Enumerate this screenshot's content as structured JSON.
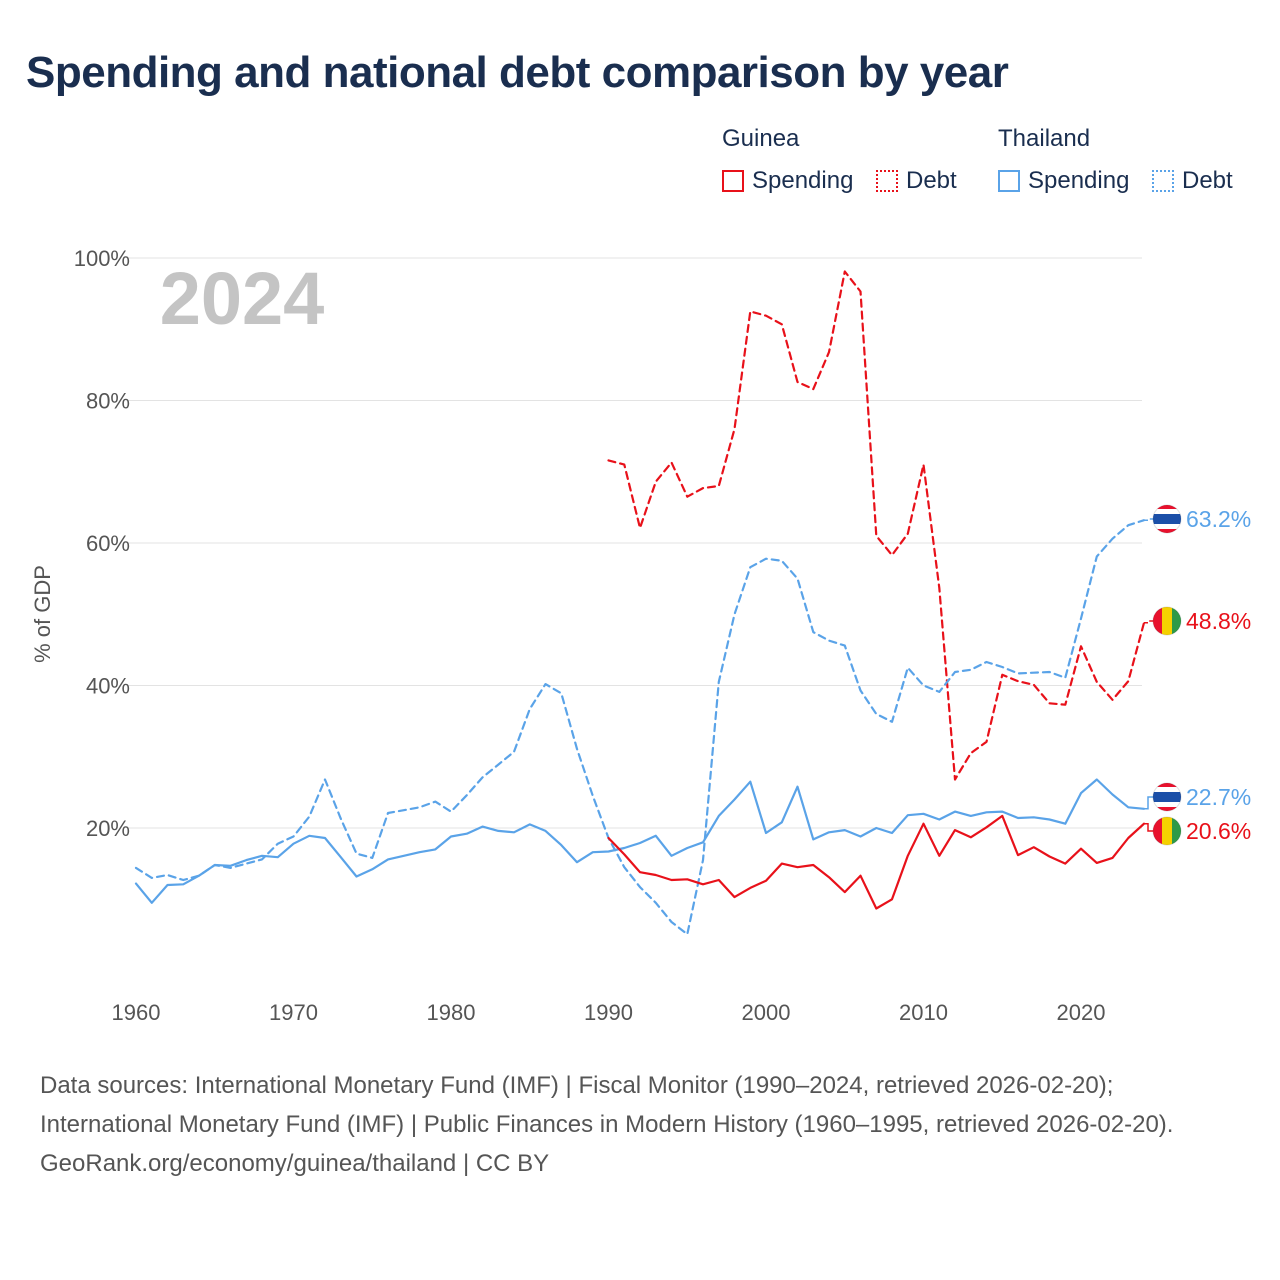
{
  "title": "Spending and national debt comparison by year",
  "legend": {
    "groups": [
      {
        "name": "Guinea",
        "color": "#e8111a",
        "items": [
          {
            "label": "Spending",
            "style": "solid"
          },
          {
            "label": "Debt",
            "style": "dotted"
          }
        ]
      },
      {
        "name": "Thailand",
        "color": "#5aa3e8",
        "items": [
          {
            "label": "Spending",
            "style": "solid"
          },
          {
            "label": "Debt",
            "style": "dotted"
          }
        ]
      }
    ]
  },
  "chart_data": {
    "type": "line",
    "title": "Spending and national debt comparison by year",
    "watermark_year": "2024",
    "ylabel": "% of GDP",
    "xlabel": "",
    "xlim": [
      1959,
      2025
    ],
    "ylim": [
      0,
      100
    ],
    "x_ticks": [
      1960,
      1970,
      1980,
      1990,
      2000,
      2010,
      2020
    ],
    "y_ticks": [
      {
        "value": 20,
        "label": "20%"
      },
      {
        "value": 40,
        "label": "40%"
      },
      {
        "value": 60,
        "label": "60%"
      },
      {
        "value": 80,
        "label": "80%"
      },
      {
        "value": 100,
        "label": "100%"
      }
    ],
    "series": [
      {
        "name": "Guinea Debt",
        "country": "Guinea",
        "measure": "Debt",
        "color": "#e8111a",
        "dash": true,
        "end_label": "48.8%",
        "points": [
          [
            1990,
            71.6
          ],
          [
            1991,
            71
          ],
          [
            1992,
            62.1
          ],
          [
            1993,
            68.6
          ],
          [
            1994,
            71.3
          ],
          [
            1995,
            66.5
          ],
          [
            1996,
            67.7
          ],
          [
            1997,
            68
          ],
          [
            1998,
            76
          ],
          [
            1999,
            92.5
          ],
          [
            2000,
            91.9
          ],
          [
            2001,
            90.7
          ],
          [
            2002,
            82.6
          ],
          [
            2003,
            81.6
          ],
          [
            2004,
            86.8
          ],
          [
            2005,
            98.1
          ],
          [
            2006,
            95.3
          ],
          [
            2007,
            61
          ],
          [
            2008,
            58.3
          ],
          [
            2009,
            61.3
          ],
          [
            2010,
            71
          ],
          [
            2011,
            53.7
          ],
          [
            2012,
            26.8
          ],
          [
            2013,
            30.5
          ],
          [
            2014,
            32.1
          ],
          [
            2015,
            41.5
          ],
          [
            2016,
            40.6
          ],
          [
            2017,
            40.1
          ],
          [
            2018,
            37.5
          ],
          [
            2019,
            37.3
          ],
          [
            2020,
            45.5
          ],
          [
            2021,
            40.5
          ],
          [
            2022,
            38
          ],
          [
            2023,
            40.6
          ],
          [
            2024,
            48.8
          ]
        ]
      },
      {
        "name": "Thailand Debt",
        "country": "Thailand",
        "measure": "Debt",
        "color": "#5aa3e8",
        "dash": true,
        "end_label": "63.2%",
        "points": [
          [
            1960,
            14.4
          ],
          [
            1961,
            13
          ],
          [
            1962,
            13.4
          ],
          [
            1963,
            12.7
          ],
          [
            1964,
            13.3
          ],
          [
            1965,
            14.8
          ],
          [
            1966,
            14.4
          ],
          [
            1967,
            15
          ],
          [
            1968,
            15.6
          ],
          [
            1969,
            17.8
          ],
          [
            1970,
            18.8
          ],
          [
            1971,
            21.6
          ],
          [
            1972,
            26.8
          ],
          [
            1973,
            21.3
          ],
          [
            1974,
            16.4
          ],
          [
            1975,
            15.8
          ],
          [
            1976,
            22.1
          ],
          [
            1977,
            22.5
          ],
          [
            1978,
            22.9
          ],
          [
            1979,
            23.7
          ],
          [
            1980,
            22.3
          ],
          [
            1981,
            24.6
          ],
          [
            1982,
            27.1
          ],
          [
            1983,
            28.9
          ],
          [
            1984,
            30.7
          ],
          [
            1985,
            36.7
          ],
          [
            1986,
            40.2
          ],
          [
            1987,
            38.9
          ],
          [
            1988,
            31.1
          ],
          [
            1989,
            24.5
          ],
          [
            1990,
            18.6
          ],
          [
            1991,
            14.5
          ],
          [
            1992,
            11.7
          ],
          [
            1993,
            9.5
          ],
          [
            1994,
            6.8
          ],
          [
            1995,
            5.1
          ],
          [
            1996,
            15.5
          ],
          [
            1997,
            40.5
          ],
          [
            1998,
            50
          ],
          [
            1999,
            56.6
          ],
          [
            2000,
            57.8
          ],
          [
            2001,
            57.5
          ],
          [
            2002,
            55
          ],
          [
            2003,
            47.5
          ],
          [
            2004,
            46.3
          ],
          [
            2005,
            45.6
          ],
          [
            2006,
            39.3
          ],
          [
            2007,
            36
          ],
          [
            2008,
            34.9
          ],
          [
            2009,
            42.5
          ],
          [
            2010,
            40
          ],
          [
            2011,
            39.1
          ],
          [
            2012,
            41.9
          ],
          [
            2013,
            42.2
          ],
          [
            2014,
            43.3
          ],
          [
            2015,
            42.6
          ],
          [
            2016,
            41.7
          ],
          [
            2017,
            41.8
          ],
          [
            2018,
            41.9
          ],
          [
            2019,
            41.1
          ],
          [
            2020,
            49.4
          ],
          [
            2021,
            58.1
          ],
          [
            2022,
            60.6
          ],
          [
            2023,
            62.5
          ],
          [
            2024,
            63.2
          ]
        ]
      },
      {
        "name": "Thailand Spending",
        "country": "Thailand",
        "measure": "Spending",
        "color": "#5aa3e8",
        "dash": false,
        "end_label": "22.7%",
        "points": [
          [
            1960,
            12.2
          ],
          [
            1961,
            9.5
          ],
          [
            1962,
            12
          ],
          [
            1963,
            12.1
          ],
          [
            1964,
            13.3
          ],
          [
            1965,
            14.8
          ],
          [
            1966,
            14.7
          ],
          [
            1967,
            15.5
          ],
          [
            1968,
            16.1
          ],
          [
            1969,
            15.9
          ],
          [
            1970,
            17.8
          ],
          [
            1971,
            18.9
          ],
          [
            1972,
            18.6
          ],
          [
            1973,
            15.9
          ],
          [
            1974,
            13.2
          ],
          [
            1975,
            14.2
          ],
          [
            1976,
            15.6
          ],
          [
            1977,
            16.1
          ],
          [
            1978,
            16.6
          ],
          [
            1979,
            17
          ],
          [
            1980,
            18.8
          ],
          [
            1981,
            19.2
          ],
          [
            1982,
            20.2
          ],
          [
            1983,
            19.6
          ],
          [
            1984,
            19.4
          ],
          [
            1985,
            20.5
          ],
          [
            1986,
            19.6
          ],
          [
            1987,
            17.6
          ],
          [
            1988,
            15.2
          ],
          [
            1989,
            16.6
          ],
          [
            1990,
            16.7
          ],
          [
            1991,
            17.2
          ],
          [
            1992,
            17.9
          ],
          [
            1993,
            18.9
          ],
          [
            1994,
            16.1
          ],
          [
            1995,
            17.2
          ],
          [
            1996,
            18
          ],
          [
            1997,
            21.7
          ],
          [
            1998,
            24
          ],
          [
            1999,
            26.5
          ],
          [
            2000,
            19.3
          ],
          [
            2001,
            20.8
          ],
          [
            2002,
            25.8
          ],
          [
            2003,
            18.4
          ],
          [
            2004,
            19.4
          ],
          [
            2005,
            19.7
          ],
          [
            2006,
            18.8
          ],
          [
            2007,
            20
          ],
          [
            2008,
            19.3
          ],
          [
            2009,
            21.8
          ],
          [
            2010,
            22
          ],
          [
            2011,
            21.2
          ],
          [
            2012,
            22.3
          ],
          [
            2013,
            21.7
          ],
          [
            2014,
            22.2
          ],
          [
            2015,
            22.3
          ],
          [
            2016,
            21.4
          ],
          [
            2017,
            21.5
          ],
          [
            2018,
            21.2
          ],
          [
            2019,
            20.6
          ],
          [
            2020,
            24.9
          ],
          [
            2021,
            26.8
          ],
          [
            2022,
            24.7
          ],
          [
            2023,
            22.9
          ],
          [
            2024,
            22.7
          ]
        ]
      },
      {
        "name": "Guinea Spending",
        "country": "Guinea",
        "measure": "Spending",
        "color": "#e8111a",
        "dash": false,
        "end_label": "20.6%",
        "points": [
          [
            1990,
            18.6
          ],
          [
            1991,
            16.3
          ],
          [
            1992,
            13.8
          ],
          [
            1993,
            13.4
          ],
          [
            1994,
            12.7
          ],
          [
            1995,
            12.8
          ],
          [
            1996,
            12.1
          ],
          [
            1997,
            12.7
          ],
          [
            1998,
            10.3
          ],
          [
            1999,
            11.6
          ],
          [
            2000,
            12.6
          ],
          [
            2001,
            15
          ],
          [
            2002,
            14.5
          ],
          [
            2003,
            14.8
          ],
          [
            2004,
            13.1
          ],
          [
            2005,
            11
          ],
          [
            2006,
            13.3
          ],
          [
            2007,
            8.7
          ],
          [
            2008,
            10
          ],
          [
            2009,
            16.1
          ],
          [
            2010,
            20.6
          ],
          [
            2011,
            16.1
          ],
          [
            2012,
            19.7
          ],
          [
            2013,
            18.7
          ],
          [
            2014,
            20.1
          ],
          [
            2015,
            21.7
          ],
          [
            2016,
            16.2
          ],
          [
            2017,
            17.3
          ],
          [
            2018,
            16
          ],
          [
            2019,
            15
          ],
          [
            2020,
            17.1
          ],
          [
            2021,
            15.1
          ],
          [
            2022,
            15.8
          ],
          [
            2023,
            18.6
          ],
          [
            2024,
            20.6
          ]
        ]
      }
    ]
  },
  "footer": {
    "sources": "Data sources: International Monetary Fund (IMF) | Fiscal Monitor (1990–2024, retrieved 2026-02-20); International Monetary Fund (IMF) | Public Finances in Modern History (1960–1995, retrieved 2026-02-20).",
    "link": "GeoRank.org/economy/guinea/thailand | CC BY"
  }
}
